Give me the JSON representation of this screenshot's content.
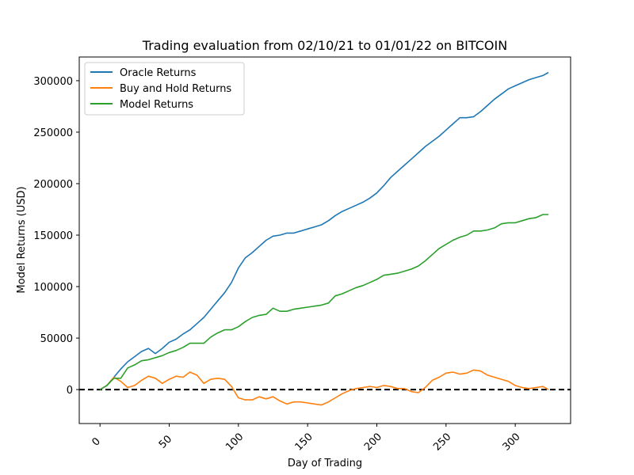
{
  "chart_data": {
    "type": "line",
    "title": "Trading evaluation from 02/10/21 to 01/01/22 on BITCOIN",
    "xlabel": "Day of Trading",
    "ylabel": "Model Returns (USD)",
    "xlim": [
      -15,
      340
    ],
    "ylim": [
      -33000,
      323000
    ],
    "xticks": [
      0,
      50,
      100,
      150,
      200,
      250,
      300
    ],
    "yticks": [
      0,
      50000,
      100000,
      150000,
      200000,
      250000,
      300000
    ],
    "grid": false,
    "legend_position": "top-left",
    "reference_line": {
      "y": 0,
      "style": "dashed",
      "color": "#000000"
    },
    "series": [
      {
        "name": "Oracle Returns",
        "color": "#1f77b4",
        "x": [
          0,
          5,
          10,
          15,
          20,
          25,
          30,
          35,
          40,
          45,
          50,
          55,
          60,
          65,
          70,
          75,
          80,
          85,
          90,
          95,
          100,
          105,
          110,
          115,
          120,
          125,
          130,
          135,
          140,
          145,
          150,
          155,
          160,
          165,
          170,
          175,
          180,
          185,
          190,
          195,
          200,
          205,
          210,
          215,
          220,
          225,
          230,
          235,
          240,
          245,
          250,
          255,
          260,
          265,
          270,
          275,
          280,
          285,
          290,
          295,
          300,
          305,
          310,
          315,
          320,
          324
        ],
        "y": [
          0,
          4000,
          12000,
          20000,
          27000,
          32000,
          37000,
          40000,
          35000,
          40000,
          46000,
          49000,
          54000,
          58000,
          64000,
          70000,
          78000,
          86000,
          94000,
          104000,
          118000,
          128000,
          133000,
          139000,
          145000,
          149000,
          150000,
          152000,
          152000,
          154000,
          156000,
          158000,
          160000,
          164000,
          169000,
          173000,
          176000,
          179000,
          182000,
          186000,
          191000,
          198000,
          206000,
          212000,
          218000,
          224000,
          230000,
          236000,
          241000,
          246000,
          252000,
          258000,
          264000,
          264000,
          265000,
          270000,
          276000,
          282000,
          287000,
          292000,
          295000,
          298000,
          301000,
          303000,
          305000,
          308000
        ]
      },
      {
        "name": "Buy and Hold Returns",
        "color": "#ff7f0e",
        "x": [
          0,
          5,
          10,
          15,
          20,
          25,
          30,
          35,
          40,
          45,
          50,
          55,
          60,
          65,
          70,
          75,
          80,
          85,
          90,
          95,
          100,
          105,
          110,
          115,
          120,
          125,
          130,
          135,
          140,
          145,
          150,
          155,
          160,
          165,
          170,
          175,
          180,
          185,
          190,
          195,
          200,
          205,
          210,
          215,
          220,
          225,
          230,
          235,
          240,
          245,
          250,
          255,
          260,
          265,
          270,
          275,
          280,
          285,
          290,
          295,
          300,
          305,
          310,
          315,
          320,
          324
        ],
        "y": [
          0,
          4000,
          12000,
          8000,
          2000,
          4000,
          9000,
          13000,
          11000,
          6000,
          10000,
          13000,
          12000,
          17000,
          14000,
          6000,
          10000,
          11000,
          10000,
          3000,
          -8000,
          -10000,
          -10000,
          -7000,
          -9000,
          -7000,
          -11000,
          -14000,
          -12000,
          -12000,
          -13000,
          -14000,
          -15000,
          -12000,
          -8000,
          -4000,
          -1000,
          1000,
          2000,
          3000,
          2000,
          4000,
          3000,
          1000,
          1000,
          -2000,
          -3000,
          2000,
          9000,
          12000,
          16000,
          17000,
          15000,
          16000,
          19000,
          18000,
          14000,
          12000,
          10000,
          8000,
          4000,
          2000,
          1000,
          2000,
          3000,
          0
        ]
      },
      {
        "name": "Model Returns",
        "color": "#2ca02c",
        "x": [
          0,
          5,
          10,
          15,
          20,
          25,
          30,
          35,
          40,
          45,
          50,
          55,
          60,
          65,
          70,
          75,
          80,
          85,
          90,
          95,
          100,
          105,
          110,
          115,
          120,
          125,
          130,
          135,
          140,
          145,
          150,
          155,
          160,
          165,
          170,
          175,
          180,
          185,
          190,
          195,
          200,
          205,
          210,
          215,
          220,
          225,
          230,
          235,
          240,
          245,
          250,
          255,
          260,
          265,
          270,
          275,
          280,
          285,
          290,
          295,
          300,
          305,
          310,
          315,
          320,
          324
        ],
        "y": [
          0,
          4000,
          11000,
          11000,
          21000,
          24000,
          28000,
          29000,
          31000,
          33000,
          36000,
          38000,
          41000,
          45000,
          45000,
          45000,
          51000,
          55000,
          58000,
          58000,
          61000,
          66000,
          70000,
          72000,
          73000,
          79000,
          76000,
          76000,
          78000,
          79000,
          80000,
          81000,
          82000,
          84000,
          91000,
          93000,
          96000,
          99000,
          101000,
          104000,
          107000,
          111000,
          112000,
          113000,
          115000,
          117000,
          120000,
          125000,
          131000,
          137000,
          141000,
          145000,
          148000,
          150000,
          154000,
          154000,
          155000,
          157000,
          161000,
          162000,
          162000,
          164000,
          166000,
          167000,
          170000,
          170000
        ]
      }
    ]
  }
}
